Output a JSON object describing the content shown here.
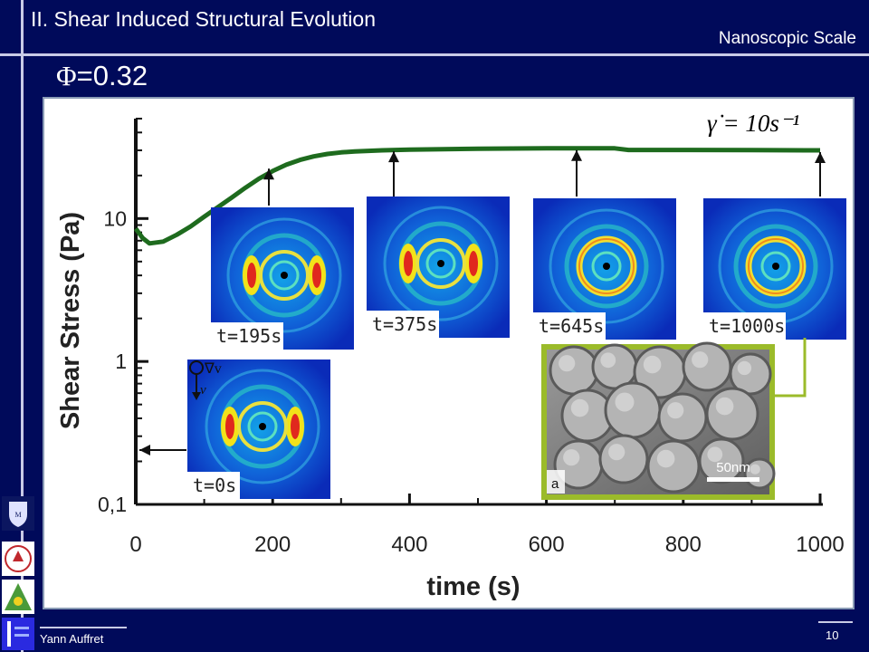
{
  "header": {
    "title": "II. Shear Induced Structural Evolution",
    "scale": "Nanoscopic Scale",
    "phi_symbol": "Φ",
    "phi_value": "=0.32"
  },
  "footer": {
    "author": "Yann Auffret",
    "page": "10"
  },
  "colors": {
    "background": "#000a5a",
    "curve": "#1e6b1e",
    "inset_border": "#9bbb2a"
  },
  "chart_data": {
    "type": "line",
    "title": "",
    "xlabel": "time (s)",
    "ylabel": "Shear Stress (Pa)",
    "xlim": [
      0,
      1000
    ],
    "ylim": [
      0.1,
      50
    ],
    "yscale": "log",
    "xticks": [
      0,
      200,
      400,
      600,
      800,
      1000
    ],
    "xtick_labels": [
      "0",
      "200",
      "400",
      "600",
      "800",
      "1000"
    ],
    "yticks": [
      0.1,
      1,
      10
    ],
    "ytick_labels": [
      "0,1",
      "1",
      "10"
    ],
    "annotation": "γ̇ = 10s⁻¹",
    "series": [
      {
        "x": [
          0,
          10,
          20,
          40,
          60,
          80,
          100,
          120,
          140,
          160,
          180,
          200,
          220,
          240,
          260,
          280,
          300,
          320,
          360,
          400,
          450,
          500,
          550,
          600,
          650,
          700,
          720,
          800,
          900,
          1000
        ],
        "y": [
          8.5,
          7.3,
          6.7,
          6.9,
          7.7,
          8.8,
          10.3,
          12.0,
          14.0,
          16.4,
          19.0,
          21.5,
          23.8,
          25.7,
          27.2,
          28.3,
          29.0,
          29.5,
          30.0,
          30.3,
          30.6,
          30.8,
          30.9,
          31.0,
          31.0,
          31.0,
          30.2,
          30.2,
          30.1,
          30.0
        ]
      }
    ],
    "saxs_patterns": [
      {
        "label": "t=0s",
        "time": 0,
        "rings": "anisotropic"
      },
      {
        "label": "t=195s",
        "time": 195,
        "rings": "anisotropic"
      },
      {
        "label": "t=375s",
        "time": 375,
        "rings": "anisotropic"
      },
      {
        "label": "t=645s",
        "time": 645,
        "rings": "isotropic"
      },
      {
        "label": "t=1000s",
        "time": 1000,
        "rings": "isotropic"
      }
    ],
    "shear_labels": {
      "gradient": "∇v",
      "velocity": "v"
    },
    "sem_inset": {
      "panel_label": "a",
      "scale_bar": "50nm"
    }
  }
}
